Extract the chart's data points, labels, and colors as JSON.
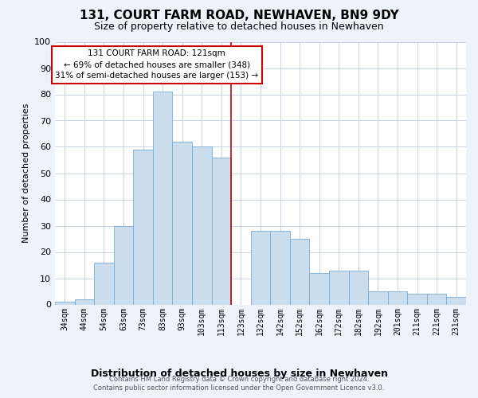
{
  "title": "131, COURT FARM ROAD, NEWHAVEN, BN9 9DY",
  "subtitle": "Size of property relative to detached houses in Newhaven",
  "xlabel": "Distribution of detached houses by size in Newhaven",
  "ylabel": "Number of detached properties",
  "categories": [
    "34sqm",
    "44sqm",
    "54sqm",
    "63sqm",
    "73sqm",
    "83sqm",
    "93sqm",
    "103sqm",
    "113sqm",
    "123sqm",
    "132sqm",
    "142sqm",
    "152sqm",
    "162sqm",
    "172sqm",
    "182sqm",
    "192sqm",
    "201sqm",
    "211sqm",
    "221sqm",
    "231sqm"
  ],
  "values": [
    1,
    2,
    16,
    30,
    59,
    81,
    62,
    60,
    56,
    0,
    28,
    28,
    25,
    12,
    13,
    13,
    5,
    5,
    4,
    4,
    3
  ],
  "bar_color": "#c9ddef",
  "bar_edge_color": "#7aadd4",
  "annotation_box_text": "131 COURT FARM ROAD: 121sqm\n← 69% of detached houses are smaller (348)\n31% of semi-detached houses are larger (153) →",
  "ylim": [
    0,
    100
  ],
  "yticks": [
    0,
    10,
    20,
    30,
    40,
    50,
    60,
    70,
    80,
    90,
    100
  ],
  "footer_text": "Contains HM Land Registry data © Crown copyright and database right 2024.\nContains public sector information licensed under the Open Government Licence v3.0.",
  "background_color": "#eef2f9",
  "plot_background_color": "#ffffff",
  "grid_color": "#c8d4e4",
  "annotation_line_color": "#cc0000",
  "title_fontsize": 11,
  "subtitle_fontsize": 9,
  "xlabel_fontsize": 9,
  "ylabel_fontsize": 8,
  "tick_fontsize": 7,
  "annotation_fontsize": 7.5,
  "footer_fontsize": 6
}
